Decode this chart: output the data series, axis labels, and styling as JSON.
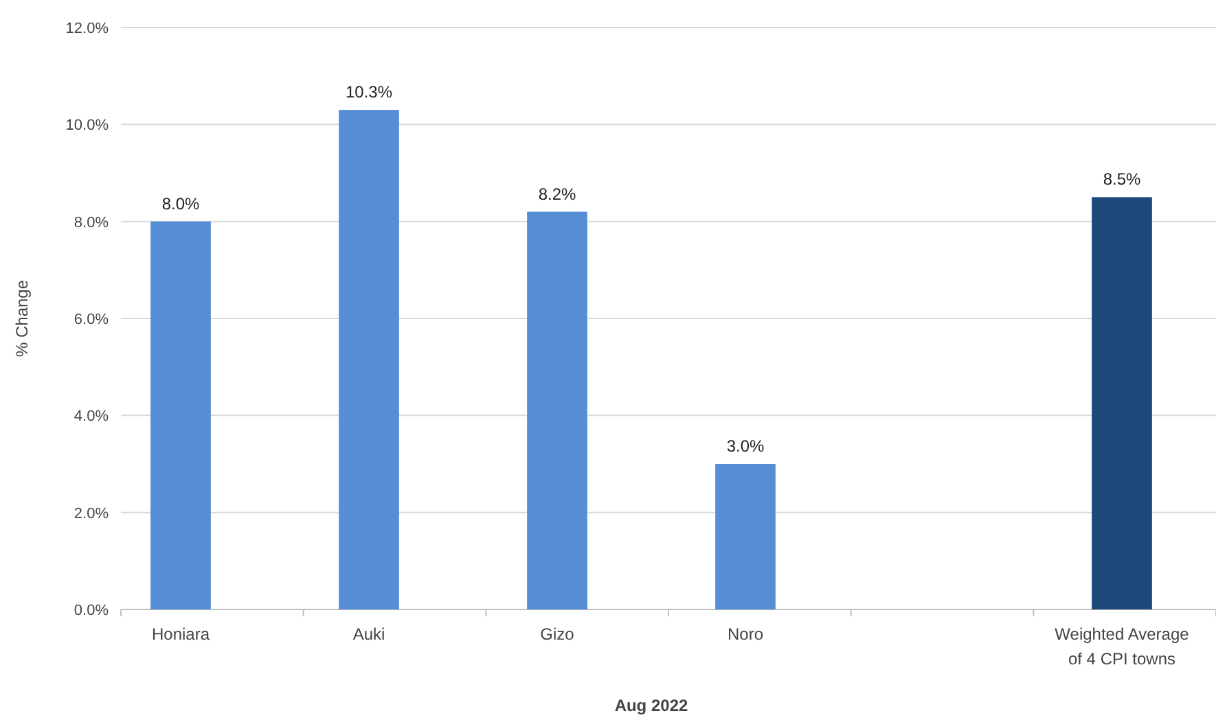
{
  "chart_data": {
    "type": "bar",
    "xlabel": "Aug 2022",
    "ylabel": "% Change",
    "categories": [
      "Honiara",
      "Auki",
      "Gizo",
      "Noro",
      null,
      "Weighted Average of 4 CPI towns"
    ],
    "values": [
      8.0,
      10.3,
      8.2,
      3.0,
      null,
      8.5
    ],
    "colors": [
      "#558ed5",
      "#558ed5",
      "#558ed5",
      "#558ed5",
      null,
      "#1f497d"
    ],
    "value_labels": [
      "8.0%",
      "10.3%",
      "8.2%",
      "3.0%",
      null,
      "8.5%"
    ],
    "ylim": [
      0,
      12
    ],
    "yticks": [
      {
        "value": 0,
        "label": "0.0%"
      },
      {
        "value": 2,
        "label": "2.0%"
      },
      {
        "value": 4,
        "label": "4.0%"
      },
      {
        "value": 6,
        "label": "6.0%"
      },
      {
        "value": 8,
        "label": "8.0%"
      },
      {
        "value": 10,
        "label": "10.0%"
      },
      {
        "value": 12,
        "label": "12.0%"
      }
    ],
    "grid": "y"
  }
}
